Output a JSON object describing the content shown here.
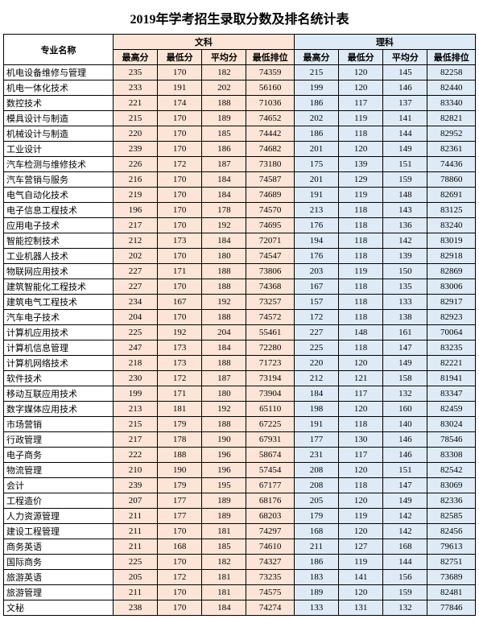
{
  "title": "2019年学考招生录取分数及排名统计表",
  "headers": {
    "major": "专业名称",
    "arts": "文科",
    "science": "理科",
    "max": "最高分",
    "min": "最低分",
    "avg": "平均分",
    "rank": "最低排位"
  },
  "colors": {
    "arts_bg": "#fce5d6",
    "science_bg": "#deebf7",
    "border": "#000000"
  },
  "rows": [
    {
      "major": "机电设备维修与管理",
      "a": [
        235,
        170,
        182,
        74359
      ],
      "s": [
        215,
        120,
        145,
        82258
      ]
    },
    {
      "major": "机电一体化技术",
      "a": [
        233,
        191,
        202,
        56160
      ],
      "s": [
        199,
        120,
        146,
        82440
      ]
    },
    {
      "major": "数控技术",
      "a": [
        221,
        174,
        188,
        71036
      ],
      "s": [
        186,
        117,
        137,
        83340
      ]
    },
    {
      "major": "模具设计与制造",
      "a": [
        215,
        170,
        189,
        74652
      ],
      "s": [
        202,
        119,
        141,
        82821
      ]
    },
    {
      "major": "机械设计与制造",
      "a": [
        220,
        170,
        185,
        74442
      ],
      "s": [
        186,
        118,
        144,
        82952
      ]
    },
    {
      "major": "工业设计",
      "a": [
        239,
        170,
        186,
        74682
      ],
      "s": [
        201,
        120,
        149,
        82361
      ]
    },
    {
      "major": "汽车检测与维修技术",
      "a": [
        226,
        172,
        187,
        73180
      ],
      "s": [
        175,
        139,
        151,
        74436
      ]
    },
    {
      "major": "汽车营销与服务",
      "a": [
        216,
        170,
        184,
        74587
      ],
      "s": [
        201,
        129,
        159,
        78860
      ]
    },
    {
      "major": "电气自动化技术",
      "a": [
        219,
        170,
        184,
        74689
      ],
      "s": [
        191,
        119,
        148,
        82691
      ]
    },
    {
      "major": "电子信息工程技术",
      "a": [
        196,
        170,
        178,
        74570
      ],
      "s": [
        213,
        118,
        143,
        83125
      ]
    },
    {
      "major": "应用电子技术",
      "a": [
        217,
        170,
        192,
        74695
      ],
      "s": [
        176,
        118,
        136,
        83240
      ]
    },
    {
      "major": "智能控制技术",
      "a": [
        212,
        173,
        184,
        72071
      ],
      "s": [
        194,
        118,
        142,
        83019
      ]
    },
    {
      "major": "工业机器人技术",
      "a": [
        202,
        170,
        180,
        74547
      ],
      "s": [
        176,
        118,
        139,
        82918
      ]
    },
    {
      "major": "物联网应用技术",
      "a": [
        227,
        171,
        188,
        73806
      ],
      "s": [
        203,
        119,
        150,
        82869
      ]
    },
    {
      "major": "建筑智能化工程技术",
      "a": [
        227,
        170,
        188,
        74368
      ],
      "s": [
        167,
        118,
        135,
        83006
      ]
    },
    {
      "major": "建筑电气工程技术",
      "a": [
        234,
        167,
        192,
        73257
      ],
      "s": [
        157,
        118,
        133,
        82917
      ]
    },
    {
      "major": "汽车电子技术",
      "a": [
        204,
        170,
        188,
        74572
      ],
      "s": [
        172,
        118,
        138,
        82923
      ]
    },
    {
      "major": "计算机应用技术",
      "a": [
        225,
        192,
        204,
        55461
      ],
      "s": [
        227,
        148,
        161,
        70064
      ]
    },
    {
      "major": "计算机信息管理",
      "a": [
        247,
        173,
        184,
        72280
      ],
      "s": [
        225,
        118,
        147,
        83235
      ]
    },
    {
      "major": "计算机网络技术",
      "a": [
        218,
        173,
        188,
        71723
      ],
      "s": [
        220,
        120,
        149,
        82221
      ]
    },
    {
      "major": "软件技术",
      "a": [
        230,
        172,
        187,
        73194
      ],
      "s": [
        212,
        121,
        158,
        81941
      ]
    },
    {
      "major": "移动互联应用技术",
      "a": [
        199,
        171,
        180,
        73904
      ],
      "s": [
        184,
        117,
        132,
        83347
      ]
    },
    {
      "major": "数字媒体应用技术",
      "a": [
        213,
        181,
        192,
        65110
      ],
      "s": [
        198,
        120,
        160,
        82459
      ]
    },
    {
      "major": "市场营销",
      "a": [
        215,
        179,
        188,
        67225
      ],
      "s": [
        191,
        118,
        140,
        83024
      ]
    },
    {
      "major": "行政管理",
      "a": [
        217,
        178,
        190,
        67931
      ],
      "s": [
        177,
        130,
        146,
        78546
      ]
    },
    {
      "major": "电子商务",
      "a": [
        222,
        188,
        196,
        58674
      ],
      "s": [
        231,
        117,
        146,
        83308
      ]
    },
    {
      "major": "物流管理",
      "a": [
        210,
        190,
        196,
        57454
      ],
      "s": [
        208,
        120,
        151,
        82542
      ]
    },
    {
      "major": "会计",
      "a": [
        239,
        179,
        195,
        67177
      ],
      "s": [
        208,
        118,
        147,
        83069
      ]
    },
    {
      "major": "工程造价",
      "a": [
        207,
        177,
        189,
        68176
      ],
      "s": [
        205,
        120,
        149,
        82336
      ]
    },
    {
      "major": "人力资源管理",
      "a": [
        211,
        177,
        189,
        68203
      ],
      "s": [
        179,
        119,
        142,
        82585
      ]
    },
    {
      "major": "建设工程管理",
      "a": [
        211,
        170,
        181,
        74297
      ],
      "s": [
        168,
        120,
        142,
        82456
      ]
    },
    {
      "major": "商务英语",
      "a": [
        211,
        168,
        185,
        74610
      ],
      "s": [
        211,
        127,
        168,
        79613
      ]
    },
    {
      "major": "国际商务",
      "a": [
        225,
        170,
        182,
        74327
      ],
      "s": [
        186,
        119,
        144,
        82751
      ]
    },
    {
      "major": "旅游英语",
      "a": [
        205,
        172,
        181,
        73235
      ],
      "s": [
        183,
        141,
        156,
        73689
      ]
    },
    {
      "major": "旅游管理",
      "a": [
        211,
        170,
        181,
        74575
      ],
      "s": [
        189,
        120,
        159,
        82481
      ]
    },
    {
      "major": "文秘",
      "a": [
        238,
        170,
        184,
        74274
      ],
      "s": [
        133,
        131,
        132,
        77846
      ]
    }
  ]
}
